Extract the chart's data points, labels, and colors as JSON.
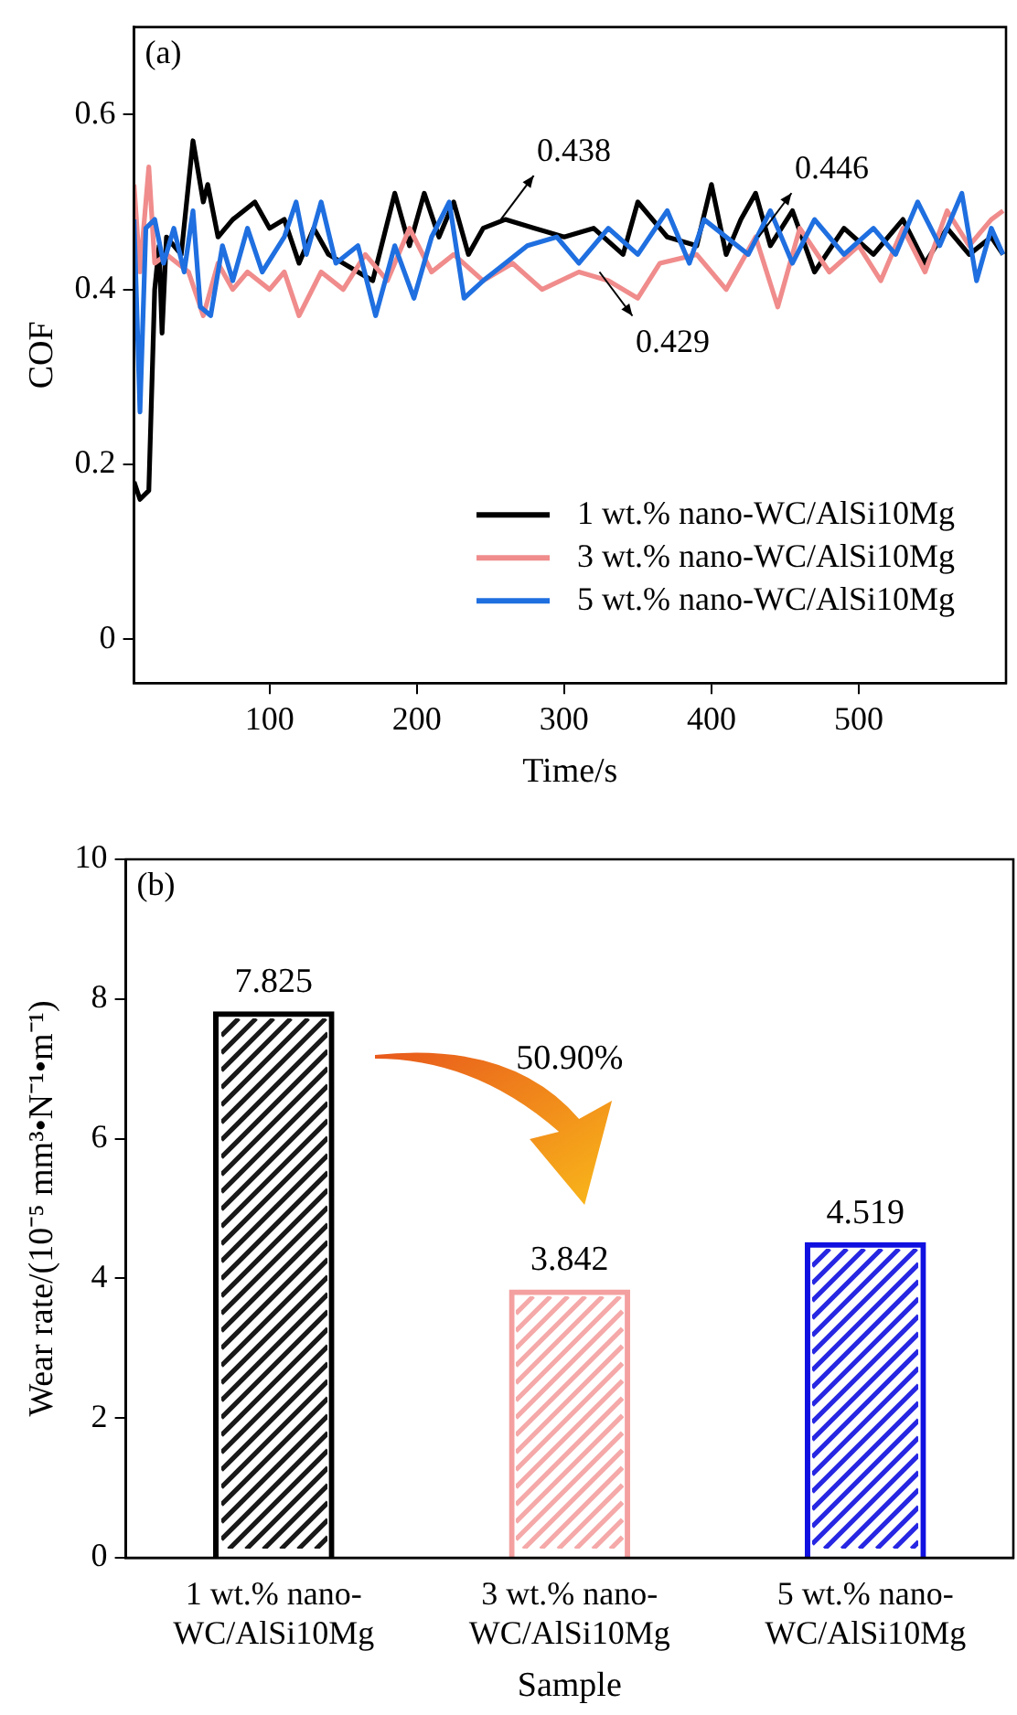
{
  "chart_data": [
    {
      "type": "line",
      "title": "(a)",
      "xlabel": "Time/s",
      "ylabel": "COF",
      "xlim": [
        8,
        600
      ],
      "xticks": [
        100,
        200,
        300,
        400,
        500
      ],
      "ylim": [
        -0.05,
        0.7
      ],
      "yticks": [
        0,
        0.2,
        0.4,
        0.6
      ],
      "legend": "bottom right",
      "series": [
        {
          "name": "1 wt.% nano-WC/AlSi10Mg",
          "color": "#000000",
          "x": [
            8,
            12,
            18,
            22,
            25,
            27,
            30,
            40,
            48,
            55,
            58,
            65,
            75,
            90,
            100,
            110,
            120,
            130,
            140,
            160,
            170,
            185,
            195,
            205,
            215,
            225,
            235,
            245,
            260,
            280,
            300,
            320,
            340,
            350,
            370,
            390,
            400,
            410,
            420,
            430,
            440,
            455,
            470,
            490,
            510,
            530,
            545,
            560,
            575,
            590,
            598
          ],
          "values": [
            0.18,
            0.16,
            0.17,
            0.4,
            0.45,
            0.35,
            0.46,
            0.44,
            0.57,
            0.5,
            0.52,
            0.46,
            0.48,
            0.5,
            0.47,
            0.48,
            0.43,
            0.47,
            0.44,
            0.42,
            0.41,
            0.51,
            0.45,
            0.51,
            0.46,
            0.5,
            0.44,
            0.47,
            0.48,
            0.47,
            0.46,
            0.47,
            0.44,
            0.5,
            0.46,
            0.45,
            0.52,
            0.44,
            0.48,
            0.51,
            0.45,
            0.49,
            0.42,
            0.47,
            0.44,
            0.48,
            0.43,
            0.47,
            0.44,
            0.46,
            0.44
          ]
        },
        {
          "name": "3 wt.% nano-WC/AlSi10Mg",
          "color": "#f08c8c",
          "x": [
            8,
            12,
            18,
            22,
            30,
            45,
            55,
            65,
            75,
            85,
            100,
            110,
            120,
            135,
            150,
            165,
            180,
            195,
            210,
            225,
            245,
            265,
            285,
            310,
            330,
            350,
            365,
            390,
            410,
            430,
            445,
            460,
            480,
            500,
            515,
            530,
            545,
            560,
            575,
            590,
            598
          ],
          "values": [
            0.52,
            0.42,
            0.54,
            0.43,
            0.44,
            0.42,
            0.37,
            0.43,
            0.4,
            0.42,
            0.4,
            0.42,
            0.37,
            0.42,
            0.4,
            0.44,
            0.41,
            0.47,
            0.42,
            0.44,
            0.41,
            0.43,
            0.4,
            0.42,
            0.41,
            0.39,
            0.43,
            0.44,
            0.4,
            0.46,
            0.38,
            0.47,
            0.42,
            0.45,
            0.41,
            0.47,
            0.42,
            0.49,
            0.45,
            0.48,
            0.49
          ]
        },
        {
          "name": "5 wt.% nano-WC/AlSi10Mg",
          "color": "#1f6fe0",
          "x": [
            8,
            12,
            16,
            22,
            28,
            35,
            42,
            48,
            53,
            60,
            68,
            75,
            85,
            95,
            110,
            118,
            125,
            135,
            145,
            160,
            172,
            185,
            198,
            210,
            222,
            232,
            245,
            260,
            275,
            295,
            310,
            330,
            350,
            370,
            385,
            395,
            410,
            425,
            440,
            455,
            470,
            490,
            510,
            525,
            540,
            555,
            570,
            580,
            590,
            598
          ],
          "values": [
            0.48,
            0.26,
            0.47,
            0.48,
            0.43,
            0.47,
            0.42,
            0.49,
            0.38,
            0.37,
            0.45,
            0.41,
            0.47,
            0.42,
            0.46,
            0.5,
            0.44,
            0.5,
            0.43,
            0.45,
            0.37,
            0.45,
            0.39,
            0.46,
            0.5,
            0.39,
            0.41,
            0.43,
            0.45,
            0.46,
            0.43,
            0.47,
            0.44,
            0.49,
            0.43,
            0.48,
            0.46,
            0.44,
            0.49,
            0.43,
            0.48,
            0.44,
            0.47,
            0.44,
            0.5,
            0.45,
            0.51,
            0.41,
            0.47,
            0.44
          ]
        }
      ],
      "annotations": [
        {
          "text": "0.438",
          "x": 257,
          "y": 0.48
        },
        {
          "text": "0.429",
          "x": 324,
          "y": 0.42
        },
        {
          "text": "0.446",
          "x": 432,
          "y": 0.46
        }
      ]
    },
    {
      "type": "bar",
      "title": "(b)",
      "xlabel": "Sample",
      "ylabel": "Wear rate/(10⁻⁵ mm³•N⁻¹•m⁻¹)",
      "categories": [
        "1 wt.% nano-WC/AlSi10Mg",
        "3 wt.% nano-WC/AlSi10Mg",
        "5 wt.% nano-WC/AlSi10Mg"
      ],
      "values": [
        7.825,
        3.842,
        4.519
      ],
      "colors": [
        "#000000",
        "#f4a0a0",
        "#1010e0"
      ],
      "ylim": [
        0,
        10
      ],
      "yticks": [
        0,
        2,
        4,
        6,
        8,
        10
      ],
      "data_labels": true,
      "annotations": [
        "50.90%"
      ]
    }
  ]
}
